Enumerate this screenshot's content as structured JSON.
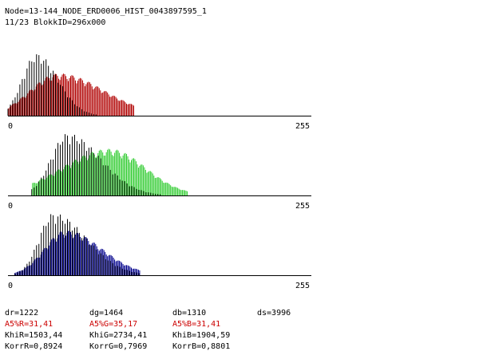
{
  "header": {
    "line1": "Node=13-144_NODE_ERD0006_HIST_0043897595_1",
    "line2": "11/23 BlokkID=296x000"
  },
  "colors": {
    "front_gray": "#000000",
    "red_channel": "#b00000",
    "green_channel": "#33cc33",
    "blue_channel": "#00008b",
    "stat_highlight": "#cc0000"
  },
  "chart_data": [
    {
      "type": "bar",
      "title": "",
      "channel": "red",
      "x_tick_labels": [
        "0",
        "255"
      ],
      "xlim": [
        0,
        255
      ],
      "overlay_series": [
        {
          "name": "",
          "color": "#b00000"
        },
        {
          "name": "",
          "color": "#000000"
        }
      ],
      "shape": {
        "gray_peak_x": 24,
        "gray_peak_height": 1.0,
        "gray_sigma": [
          12,
          18
        ],
        "chan_peak_x": 42,
        "chan_peak_height": 0.68,
        "chan_sigma": [
          24,
          38
        ],
        "range": [
          0,
          105
        ]
      }
    },
    {
      "type": "bar",
      "title": "",
      "channel": "green",
      "x_tick_labels": [
        "0",
        "255"
      ],
      "xlim": [
        0,
        255
      ],
      "overlay_series": [
        {
          "name": "",
          "color": "#33cc33"
        },
        {
          "name": "",
          "color": "#000000"
        }
      ],
      "shape": {
        "gray_peak_x": 50,
        "gray_peak_height": 1.0,
        "gray_sigma": [
          14,
          28
        ],
        "chan_peak_x": 85,
        "chan_peak_height": 0.75,
        "chan_sigma": [
          40,
          30
        ],
        "range": [
          20,
          150
        ]
      }
    },
    {
      "type": "bar",
      "title": "",
      "channel": "blue",
      "x_tick_labels": [
        "0",
        "255"
      ],
      "xlim": [
        0,
        255
      ],
      "overlay_series": [
        {
          "name": "",
          "color": "#00008b"
        },
        {
          "name": "",
          "color": "#000000"
        }
      ],
      "shape": {
        "gray_peak_x": 38,
        "gray_peak_height": 1.0,
        "gray_sigma": [
          12,
          28
        ],
        "chan_peak_x": 48,
        "chan_peak_height": 0.72,
        "chan_sigma": [
          18,
          30
        ],
        "range": [
          5,
          110
        ]
      }
    }
  ],
  "stats": {
    "dr": "dr=1222",
    "dg": "dg=1464",
    "db": "db=1310",
    "ds": "ds=3996",
    "a5r": "A5%R=31,41",
    "a5g": "A5%G=35,17",
    "a5b": "A5%B=31,41",
    "khir": "KhiR=1503,44",
    "khig": "KhiG=2734,41",
    "khib": "KhiB=1904,59",
    "korrr": "KorrR=0,8924",
    "korrg": "KorrG=0,7969",
    "korrb": "KorrB=0,8801"
  }
}
